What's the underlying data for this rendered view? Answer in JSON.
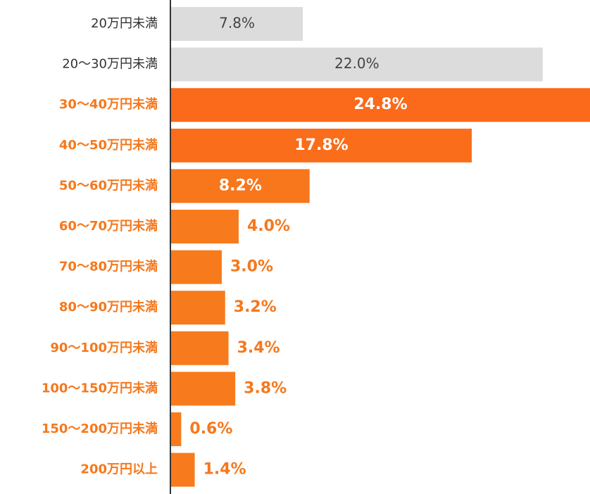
{
  "chart_data": {
    "type": "hbar",
    "categories": [
      "20万円未満",
      "20～30万円未満",
      "30～40万円未満",
      "40～50万円未満",
      "50～60万円未満",
      "60～70万円未満",
      "70～80万円未満",
      "80～90万円未満",
      "90～100万円未満",
      "100～150万円未満",
      "150～200万円未満",
      "200万円以上"
    ],
    "values": [
      7.8,
      22.0,
      24.8,
      17.8,
      8.2,
      4.0,
      3.0,
      3.2,
      3.4,
      3.8,
      0.6,
      1.4
    ],
    "value_labels": [
      "7.8%",
      "22.0%",
      "24.8%",
      "17.8%",
      "8.2%",
      "4.0%",
      "3.0%",
      "3.2%",
      "3.4%",
      "3.8%",
      "0.6%",
      "1.4%"
    ],
    "colors": [
      "#dcdcdc",
      "#dcdcdc",
      "#fa6a1a",
      "#fa6d1a",
      "#f8761c",
      "#f77b1c",
      "#f77b1c",
      "#f77b1c",
      "#f77b1c",
      "#f77b1c",
      "#f77b1c",
      "#f77b1c"
    ]
  }
}
